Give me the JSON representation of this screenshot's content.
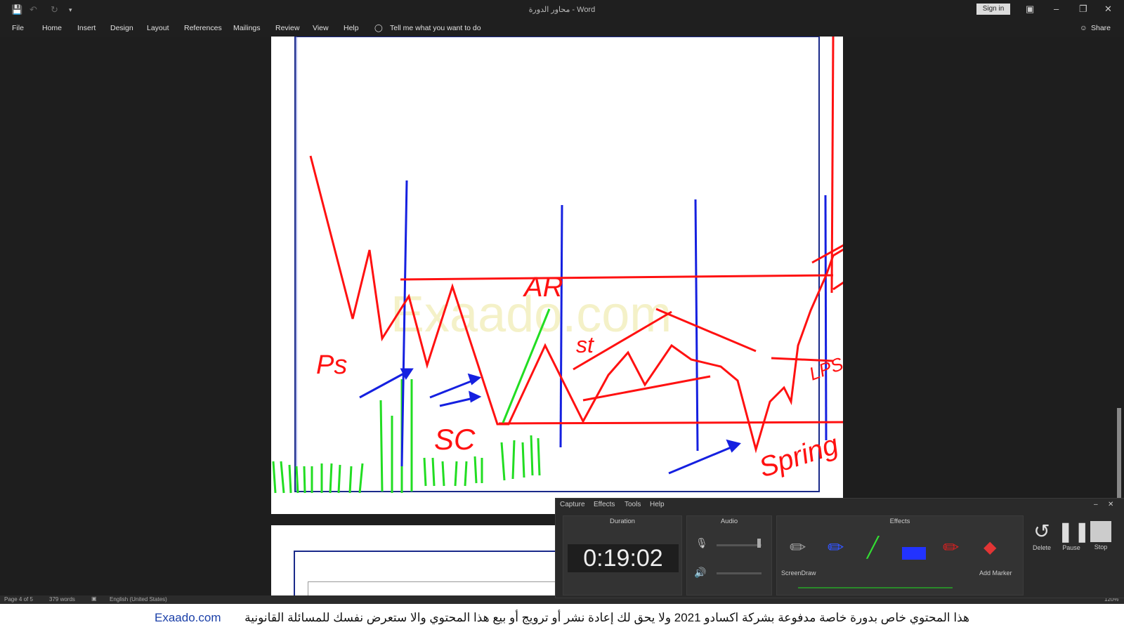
{
  "titlebar": {
    "title": "محاور الدورة  -  Word",
    "signin": "Sign in"
  },
  "ribbon": {
    "tabs": [
      "File",
      "Home",
      "Insert",
      "Design",
      "Layout",
      "References",
      "Mailings",
      "Review",
      "View",
      "Help"
    ],
    "tell_me": "Tell me what you want to do",
    "share": "Share"
  },
  "drawing": {
    "labels": {
      "ps": "Ps",
      "ar": "AR",
      "st": "st",
      "sc": "SC",
      "lps": "LPS",
      "spring": "Spring"
    },
    "watermark": "Exaado.com"
  },
  "recorder": {
    "menu": [
      "Capture",
      "Effects",
      "Tools",
      "Help"
    ],
    "duration_label": "Duration",
    "duration": "0:19:02",
    "audio_label": "Audio",
    "effects_label": "Effects",
    "screendraw": "ScreenDraw",
    "add_marker": "Add Marker",
    "delete": "Delete",
    "pause": "Pause",
    "stop": "Stop"
  },
  "statusbar": {
    "page": "Page 4 of 5",
    "words": "379 words",
    "lang": "English (United States)",
    "zoom": "120%"
  },
  "footer": {
    "brand": "Exaado.com",
    "text": "هذا المحتوي خاص بدورة خاصة مدفوعة بشركة اكسادو 2021 ولا يحق لك إعادة نشر أو ترويج أو بيع هذا المحتوي والا ستعرض نفسك للمسائلة القانونية"
  }
}
